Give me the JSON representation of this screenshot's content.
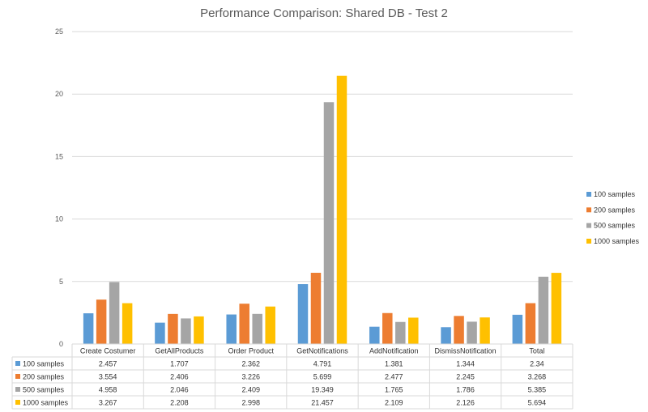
{
  "chart_data": {
    "type": "bar",
    "title": "Performance Comparison: Shared DB - Test 2",
    "xlabel": "",
    "ylabel": "",
    "ylim": [
      0,
      25
    ],
    "yticks": [
      0,
      5,
      10,
      15,
      20,
      25
    ],
    "grid": true,
    "legend_position": "right",
    "data_table": true,
    "categories": [
      "Create Costumer",
      "GetAllProducts",
      "Order Product",
      "GetNotifications",
      "AddNotification",
      "DismissNotification",
      "Total"
    ],
    "series": [
      {
        "name": "100 samples",
        "color": "#5B9BD5",
        "values": [
          2.457,
          1.707,
          2.362,
          4.791,
          1.381,
          1.344,
          2.34
        ],
        "labels": [
          "2.457",
          "1.707",
          "2.362",
          "4.791",
          "1.381",
          "1.344",
          "2.34"
        ]
      },
      {
        "name": "200 samples",
        "color": "#ED7D31",
        "values": [
          3.554,
          2.406,
          3.226,
          5.699,
          2.477,
          2.245,
          3.268
        ],
        "labels": [
          "3.554",
          "2.406",
          "3.226",
          "5.699",
          "2.477",
          "2.245",
          "3.268"
        ]
      },
      {
        "name": "500 samples",
        "color": "#A5A5A5",
        "values": [
          4.958,
          2.046,
          2.409,
          19.349,
          1.765,
          1.786,
          5.385
        ],
        "labels": [
          "4.958",
          "2.046",
          "2.409",
          "19.349",
          "1.765",
          "1.786",
          "5.385"
        ]
      },
      {
        "name": "1000 samples",
        "color": "#FFC000",
        "values": [
          3.267,
          2.208,
          2.998,
          21.457,
          2.109,
          2.126,
          5.694
        ],
        "labels": [
          "3.267",
          "2.208",
          "2.998",
          "21.457",
          "2.109",
          "2.126",
          "5.694"
        ]
      }
    ]
  }
}
